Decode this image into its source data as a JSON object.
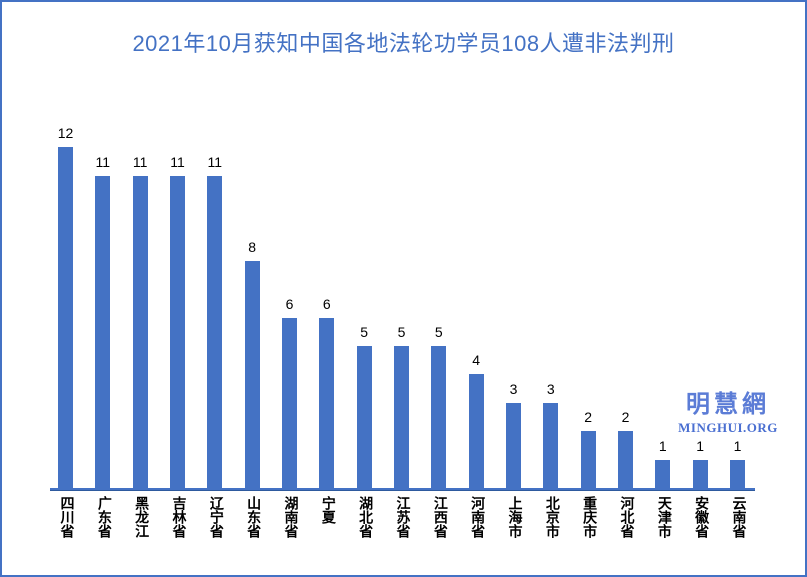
{
  "title": {
    "text": "2021年10月获知中国各地法轮功学员108人遭非法判刑",
    "color": "#4472C4"
  },
  "watermark": {
    "cjk": "明慧網",
    "latin": "MINGHUI.ORG",
    "color": "#5b7cd6"
  },
  "colors": {
    "bar": "#4472C4",
    "axis_line": "#4472C4",
    "frame_border": "#4472C4",
    "value_label": "#000000",
    "background": "#ffffff"
  },
  "chart_data": {
    "type": "bar",
    "title": "2021年10月获知中国各地法轮功学员108人遭非法判刑",
    "categories": [
      "四川省",
      "广东省",
      "黑龙江",
      "吉林省",
      "辽宁省",
      "山东省",
      "湖南省",
      "宁夏",
      "湖北省",
      "江苏省",
      "江西省",
      "河南省",
      "上海市",
      "北京市",
      "重庆市",
      "河北省",
      "天津市",
      "安徽省",
      "云南省"
    ],
    "values": [
      12,
      11,
      11,
      11,
      11,
      8,
      6,
      6,
      5,
      5,
      5,
      4,
      3,
      3,
      2,
      2,
      1,
      1,
      1
    ],
    "xlabel": "",
    "ylabel": "",
    "ylim": [
      0,
      12
    ],
    "grid": false,
    "legend": "none",
    "y_axis_shown": false,
    "data_labels": true,
    "bar_color": "#4472C4"
  }
}
